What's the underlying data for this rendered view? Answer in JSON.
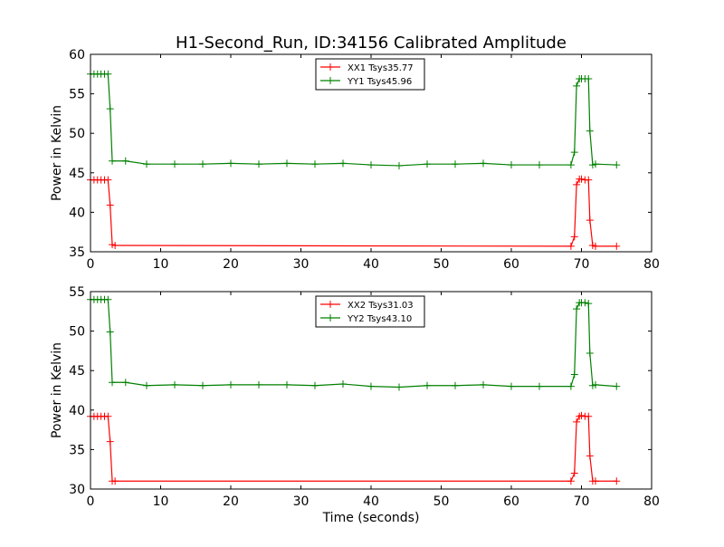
{
  "title": "H1-Second_Run, ID:34156 Calibrated Amplitude",
  "chart_data": [
    {
      "type": "line",
      "title": "H1-Second_Run, ID:34156 Calibrated Amplitude",
      "xlabel": "",
      "ylabel": "Power in Kelvin",
      "xlim": [
        0,
        80
      ],
      "ylim": [
        35,
        60
      ],
      "xticks": [
        "0",
        "10",
        "20",
        "30",
        "40",
        "50",
        "60",
        "70",
        "80"
      ],
      "yticks": [
        "35",
        "40",
        "45",
        "50",
        "55",
        "60"
      ],
      "grid": false,
      "legend_position": "top-center",
      "series": [
        {
          "name": "XX1 Tsys35.77",
          "color": "#ff0000",
          "marker": "+",
          "x": [
            0,
            0.5,
            1,
            1.5,
            2,
            2.5,
            2.8,
            3.1,
            3.5,
            68.5,
            69.0,
            69.3,
            69.7,
            70,
            70.5,
            71,
            71.2,
            71.6,
            72,
            75
          ],
          "y": [
            44.1,
            44.1,
            44.1,
            44.1,
            44.1,
            44.1,
            40.9,
            35.9,
            35.8,
            35.7,
            36.9,
            43.5,
            44.2,
            44.2,
            44.1,
            44.1,
            39.0,
            35.8,
            35.7,
            35.7
          ]
        },
        {
          "name": "YY1 Tsys45.96",
          "color": "#008000",
          "marker": "+",
          "x": [
            0,
            0.5,
            1,
            1.5,
            2,
            2.5,
            2.8,
            3.1,
            5,
            8,
            12,
            16,
            20,
            24,
            28,
            32,
            36,
            40,
            44,
            48,
            52,
            56,
            60,
            64,
            68.5,
            69.0,
            69.3,
            69.7,
            70,
            70.5,
            71,
            71.2,
            71.6,
            72,
            75
          ],
          "y": [
            57.5,
            57.5,
            57.5,
            57.5,
            57.5,
            57.5,
            53.1,
            46.5,
            46.5,
            46.1,
            46.1,
            46.1,
            46.2,
            46.1,
            46.2,
            46.1,
            46.2,
            46.0,
            45.9,
            46.1,
            46.1,
            46.2,
            46.0,
            46.0,
            46.0,
            47.6,
            56.0,
            56.9,
            56.9,
            56.9,
            56.9,
            50.3,
            46.0,
            46.1,
            46.0
          ]
        }
      ]
    },
    {
      "type": "line",
      "title": "",
      "xlabel": "Time (seconds)",
      "ylabel": "Power in Kelvin",
      "xlim": [
        0,
        80
      ],
      "ylim": [
        30,
        55
      ],
      "xticks": [
        "0",
        "10",
        "20",
        "30",
        "40",
        "50",
        "60",
        "70",
        "80"
      ],
      "yticks": [
        "30",
        "35",
        "40",
        "45",
        "50",
        "55"
      ],
      "grid": false,
      "legend_position": "top-center",
      "series": [
        {
          "name": "XX2 Tsys31.03",
          "color": "#ff0000",
          "marker": "+",
          "x": [
            0,
            0.5,
            1,
            1.5,
            2,
            2.5,
            2.8,
            3.1,
            3.5,
            68.5,
            69.0,
            69.3,
            69.7,
            70,
            70.5,
            71,
            71.2,
            71.6,
            72,
            75
          ],
          "y": [
            39.2,
            39.2,
            39.2,
            39.2,
            39.2,
            39.2,
            36.0,
            31.0,
            31.0,
            31.0,
            32.0,
            38.5,
            39.2,
            39.3,
            39.2,
            39.2,
            34.2,
            31.0,
            31.0,
            31.0
          ]
        },
        {
          "name": "YY2 Tsys43.10",
          "color": "#008000",
          "marker": "+",
          "x": [
            0,
            0.5,
            1,
            1.5,
            2,
            2.5,
            2.8,
            3.1,
            5,
            8,
            12,
            16,
            20,
            24,
            28,
            32,
            36,
            40,
            44,
            48,
            52,
            56,
            60,
            64,
            68.5,
            69.0,
            69.3,
            69.7,
            70,
            70.5,
            71,
            71.2,
            71.6,
            72,
            75
          ],
          "y": [
            54.0,
            54.0,
            54.0,
            54.0,
            54.0,
            54.0,
            49.9,
            43.5,
            43.5,
            43.1,
            43.2,
            43.1,
            43.2,
            43.2,
            43.2,
            43.1,
            43.3,
            43.0,
            42.9,
            43.1,
            43.1,
            43.2,
            43.0,
            43.0,
            43.0,
            44.5,
            52.8,
            53.6,
            53.6,
            53.6,
            53.5,
            47.2,
            43.1,
            43.2,
            43.0
          ]
        }
      ]
    }
  ]
}
